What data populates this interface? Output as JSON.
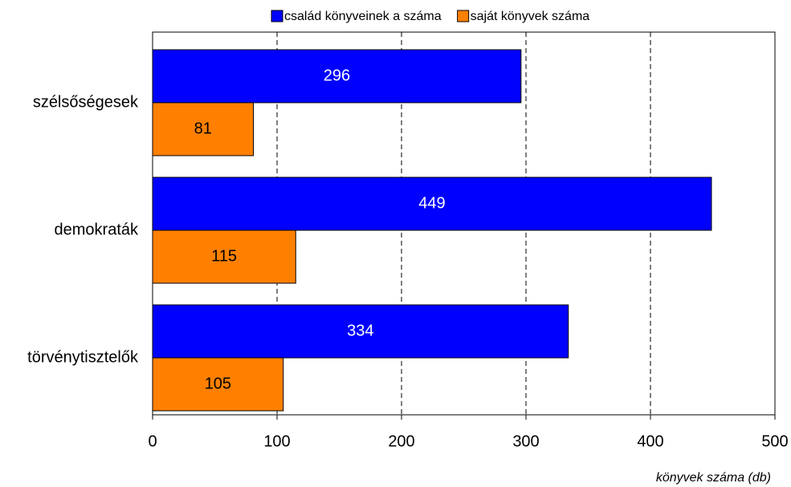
{
  "chart_data": {
    "type": "bar",
    "orientation": "horizontal",
    "categories": [
      "szélsőségesek",
      "demokraták",
      "törvénytisztelők"
    ],
    "series": [
      {
        "name": "család könyveinek a száma",
        "color": "#0000ff",
        "values": [
          296,
          449,
          334
        ]
      },
      {
        "name": "saját könyvek száma",
        "color": "#ff8000",
        "values": [
          81,
          115,
          105
        ]
      }
    ],
    "xlabel": "könyvek száma (db)",
    "xlim": [
      0,
      500
    ],
    "xticks": [
      0,
      100,
      200,
      300,
      400,
      500
    ],
    "grid": true,
    "legend": "top"
  }
}
